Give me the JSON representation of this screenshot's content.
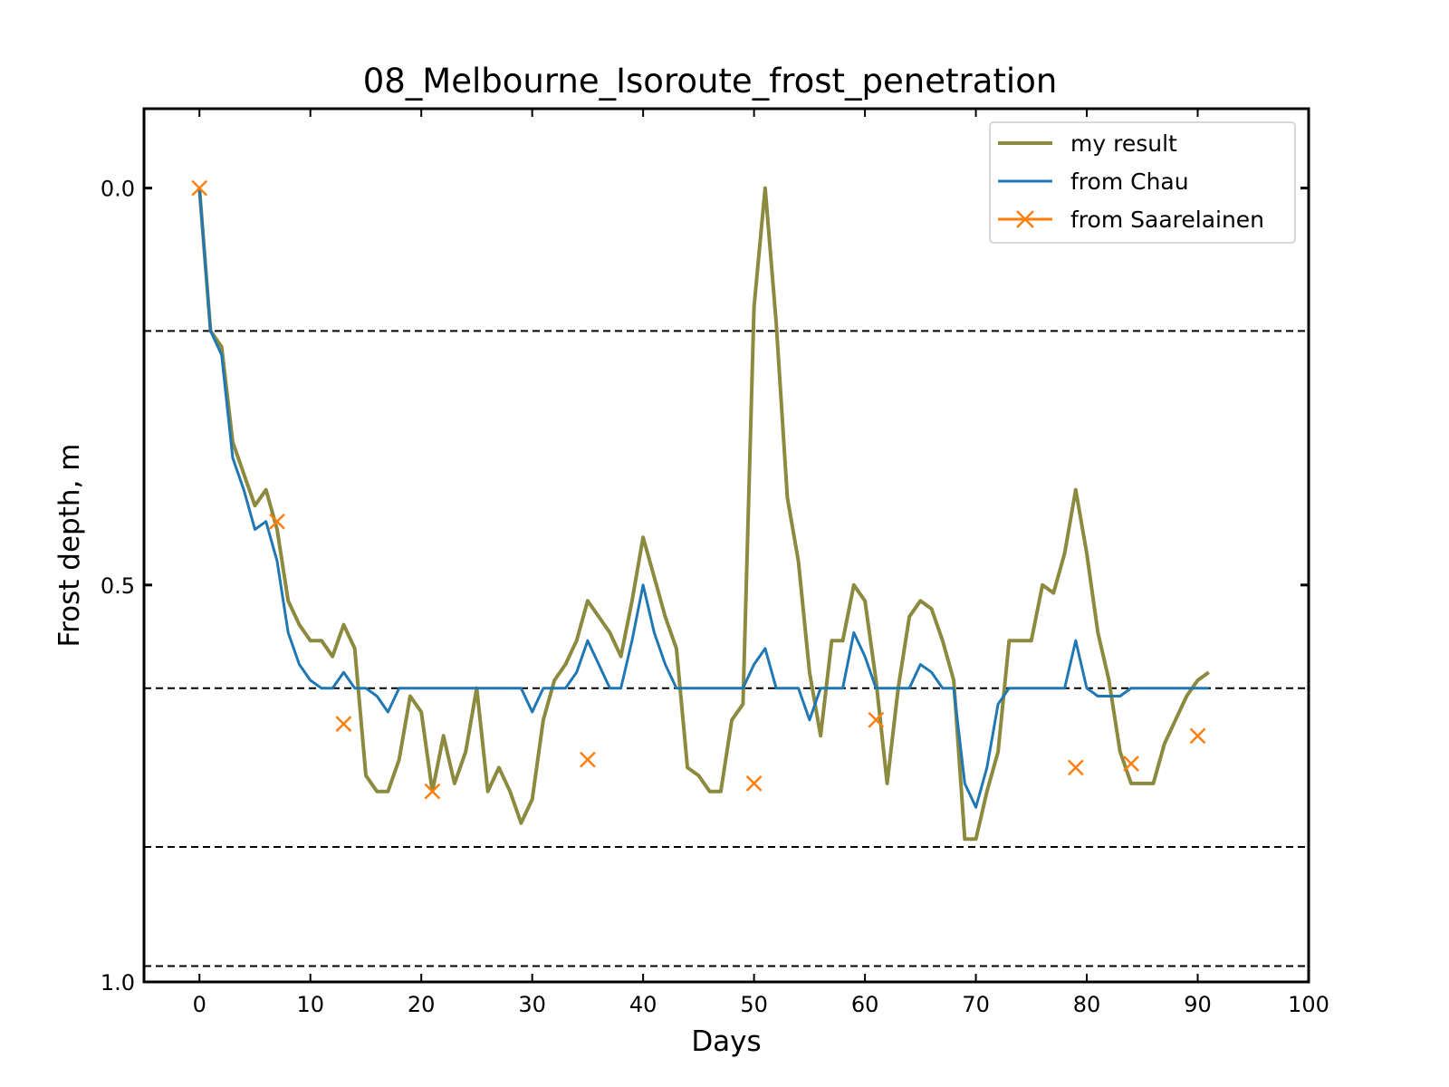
{
  "chart_data": {
    "type": "line",
    "title": "08_Melbourne_Isoroute_frost_penetration",
    "xlabel": "Days",
    "ylabel": "Frost depth, m",
    "xlim": [
      -5,
      100
    ],
    "ylim": [
      1.0,
      -0.1
    ],
    "y_inverted": true,
    "xticks": [
      0,
      10,
      20,
      30,
      40,
      50,
      60,
      70,
      80,
      90,
      100
    ],
    "yticks": [
      0.0,
      0.5,
      1.0
    ],
    "xtick_labels": [
      "0",
      "10",
      "20",
      "30",
      "40",
      "50",
      "60",
      "70",
      "80",
      "90",
      "100"
    ],
    "ytick_labels": [
      "0.0",
      "0.5",
      "1.0"
    ],
    "grid": false,
    "legend_position": "top-right",
    "reference_lines": [
      {
        "y": 0.18,
        "style": "dashed",
        "color": "#000000"
      },
      {
        "y": 0.63,
        "style": "dashed",
        "color": "#000000"
      },
      {
        "y": 0.83,
        "style": "dashed",
        "color": "#000000"
      },
      {
        "y": 0.98,
        "style": "dashed",
        "color": "#000000"
      }
    ],
    "series": [
      {
        "name": "my result",
        "color": "#8c8a3e",
        "style": "line",
        "x": [
          0,
          1,
          2,
          3,
          4,
          5,
          6,
          7,
          8,
          9,
          10,
          11,
          12,
          13,
          14,
          15,
          16,
          17,
          18,
          19,
          20,
          21,
          22,
          23,
          24,
          25,
          26,
          27,
          28,
          29,
          30,
          31,
          32,
          33,
          34,
          35,
          36,
          37,
          38,
          39,
          40,
          41,
          42,
          43,
          44,
          45,
          46,
          47,
          48,
          49,
          50,
          51,
          52,
          53,
          54,
          55,
          56,
          57,
          58,
          59,
          60,
          61,
          62,
          63,
          64,
          65,
          66,
          67,
          68,
          69,
          70,
          71,
          72,
          73,
          74,
          75,
          76,
          77,
          78,
          79,
          80,
          81,
          82,
          83,
          84,
          85,
          86,
          87,
          88,
          89,
          90,
          91
        ],
        "values": [
          0.0,
          0.18,
          0.2,
          0.32,
          0.36,
          0.4,
          0.38,
          0.43,
          0.52,
          0.55,
          0.57,
          0.57,
          0.59,
          0.55,
          0.58,
          0.74,
          0.76,
          0.76,
          0.72,
          0.64,
          0.66,
          0.76,
          0.69,
          0.75,
          0.71,
          0.63,
          0.76,
          0.73,
          0.76,
          0.8,
          0.77,
          0.67,
          0.62,
          0.6,
          0.57,
          0.52,
          0.54,
          0.56,
          0.59,
          0.52,
          0.44,
          0.49,
          0.54,
          0.58,
          0.73,
          0.74,
          0.76,
          0.76,
          0.67,
          0.65,
          0.15,
          0.0,
          0.17,
          0.39,
          0.47,
          0.61,
          0.69,
          0.57,
          0.57,
          0.5,
          0.52,
          0.62,
          0.75,
          0.63,
          0.54,
          0.52,
          0.53,
          0.57,
          0.62,
          0.82,
          0.82,
          0.76,
          0.71,
          0.57,
          0.57,
          0.57,
          0.5,
          0.51,
          0.46,
          0.38,
          0.46,
          0.56,
          0.62,
          0.71,
          0.75,
          0.75,
          0.75,
          0.7,
          0.67,
          0.64,
          0.62,
          0.61
        ]
      },
      {
        "name": "from Chau",
        "color": "#1f77b4",
        "style": "line",
        "x": [
          0,
          1,
          2,
          3,
          4,
          5,
          6,
          7,
          8,
          9,
          10,
          11,
          12,
          13,
          14,
          15,
          16,
          17,
          18,
          19,
          20,
          21,
          22,
          23,
          24,
          25,
          26,
          27,
          28,
          29,
          30,
          31,
          32,
          33,
          34,
          35,
          36,
          37,
          38,
          39,
          40,
          41,
          42,
          43,
          44,
          45,
          46,
          47,
          48,
          49,
          50,
          51,
          52,
          53,
          54,
          55,
          56,
          57,
          58,
          59,
          60,
          61,
          62,
          63,
          64,
          65,
          66,
          67,
          68,
          69,
          70,
          71,
          72,
          73,
          74,
          75,
          76,
          77,
          78,
          79,
          80,
          81,
          82,
          83,
          84,
          85,
          86,
          87,
          88,
          89,
          90,
          91
        ],
        "values": [
          0.0,
          0.18,
          0.21,
          0.34,
          0.38,
          0.43,
          0.42,
          0.47,
          0.56,
          0.6,
          0.62,
          0.63,
          0.63,
          0.61,
          0.63,
          0.63,
          0.64,
          0.66,
          0.63,
          0.63,
          0.63,
          0.63,
          0.63,
          0.63,
          0.63,
          0.63,
          0.63,
          0.63,
          0.63,
          0.63,
          0.66,
          0.63,
          0.63,
          0.63,
          0.61,
          0.57,
          0.6,
          0.63,
          0.63,
          0.57,
          0.5,
          0.56,
          0.6,
          0.63,
          0.63,
          0.63,
          0.63,
          0.63,
          0.63,
          0.63,
          0.6,
          0.58,
          0.63,
          0.63,
          0.63,
          0.67,
          0.63,
          0.63,
          0.63,
          0.56,
          0.59,
          0.63,
          0.63,
          0.63,
          0.63,
          0.6,
          0.61,
          0.63,
          0.63,
          0.75,
          0.78,
          0.73,
          0.65,
          0.63,
          0.63,
          0.63,
          0.63,
          0.63,
          0.63,
          0.57,
          0.63,
          0.64,
          0.64,
          0.64,
          0.63,
          0.63,
          0.63,
          0.63,
          0.63,
          0.63,
          0.63,
          0.63
        ]
      },
      {
        "name": "from Saarelainen",
        "color": "#ff7f0e",
        "style": "marker-x",
        "x": [
          0,
          7,
          13,
          21,
          35,
          50,
          61,
          79,
          84,
          90
        ],
        "values": [
          0.0,
          0.42,
          0.675,
          0.76,
          0.72,
          0.75,
          0.67,
          0.73,
          0.725,
          0.69
        ]
      }
    ]
  }
}
